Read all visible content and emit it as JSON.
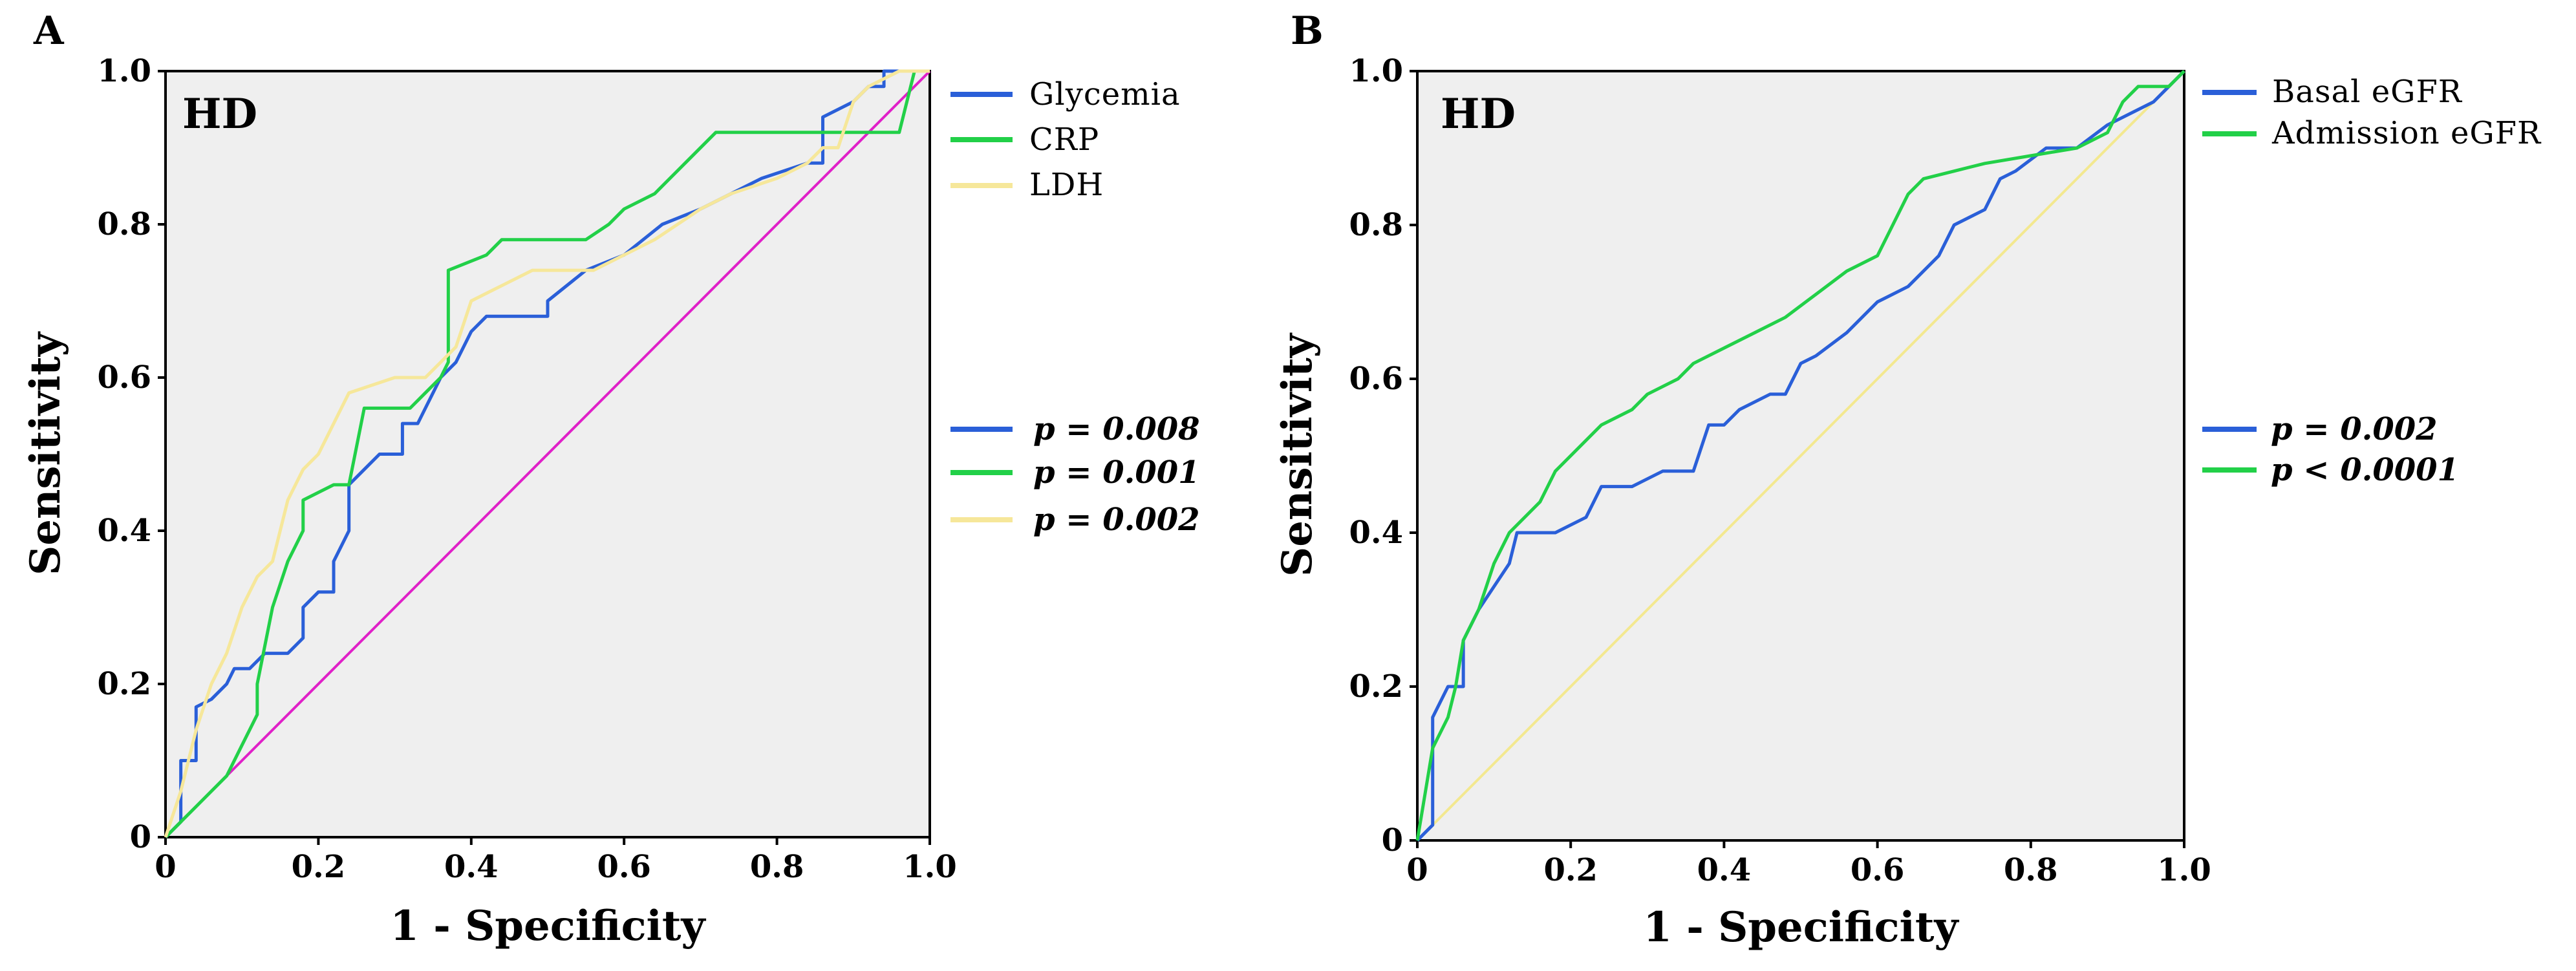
{
  "colors": {
    "plot_bg": "#efefef",
    "frame": "#000000",
    "blue": "#2a5fd8",
    "green": "#22d048",
    "yellow": "#f6e79a",
    "magenta": "#e020c8",
    "ref_yellow": "#f3e890"
  },
  "chart_data": [
    {
      "type": "line",
      "panel_label": "A",
      "inplot_label": "HD",
      "xlabel": "1 - Specificity",
      "ylabel": "Sensitivity",
      "xlim": [
        0,
        1
      ],
      "ylim": [
        0,
        1
      ],
      "x_ticks": [
        0,
        0.2,
        0.4,
        0.6,
        0.8,
        1.0
      ],
      "y_ticks": [
        0,
        0.2,
        0.4,
        0.6,
        0.8,
        1.0
      ],
      "x_tick_labels": [
        "0",
        "0.2",
        "0.4",
        "0.6",
        "0.8",
        "1.0"
      ],
      "y_tick_labels": [
        "0",
        "0.2",
        "0.4",
        "0.6",
        "0.8",
        "1.0"
      ],
      "legend_top": [
        "Glycemia",
        "CRP",
        "LDH"
      ],
      "legend_p": [
        "p = 0.008",
        "p = 0.001",
        "p = 0.002"
      ],
      "reference": {
        "color": "magenta",
        "points": [
          [
            0,
            0
          ],
          [
            1,
            1
          ]
        ]
      },
      "series": [
        {
          "name": "Glycemia",
          "color": "blue",
          "points": [
            [
              0,
              0
            ],
            [
              0.02,
              0.02
            ],
            [
              0.02,
              0.1
            ],
            [
              0.04,
              0.1
            ],
            [
              0.04,
              0.17
            ],
            [
              0.06,
              0.18
            ],
            [
              0.08,
              0.2
            ],
            [
              0.09,
              0.22
            ],
            [
              0.11,
              0.22
            ],
            [
              0.13,
              0.24
            ],
            [
              0.16,
              0.24
            ],
            [
              0.18,
              0.26
            ],
            [
              0.18,
              0.3
            ],
            [
              0.2,
              0.32
            ],
            [
              0.22,
              0.32
            ],
            [
              0.22,
              0.36
            ],
            [
              0.24,
              0.4
            ],
            [
              0.24,
              0.46
            ],
            [
              0.26,
              0.48
            ],
            [
              0.28,
              0.5
            ],
            [
              0.31,
              0.5
            ],
            [
              0.31,
              0.54
            ],
            [
              0.33,
              0.54
            ],
            [
              0.35,
              0.58
            ],
            [
              0.36,
              0.6
            ],
            [
              0.38,
              0.62
            ],
            [
              0.4,
              0.66
            ],
            [
              0.42,
              0.68
            ],
            [
              0.5,
              0.68
            ],
            [
              0.5,
              0.7
            ],
            [
              0.55,
              0.74
            ],
            [
              0.6,
              0.76
            ],
            [
              0.65,
              0.8
            ],
            [
              0.7,
              0.82
            ],
            [
              0.74,
              0.84
            ],
            [
              0.78,
              0.86
            ],
            [
              0.84,
              0.88
            ],
            [
              0.86,
              0.88
            ],
            [
              0.86,
              0.94
            ],
            [
              0.9,
              0.96
            ],
            [
              0.92,
              0.98
            ],
            [
              0.94,
              0.98
            ],
            [
              0.94,
              1
            ],
            [
              1,
              1
            ]
          ]
        },
        {
          "name": "CRP",
          "color": "green",
          "points": [
            [
              0,
              0
            ],
            [
              0.02,
              0.02
            ],
            [
              0.04,
              0.04
            ],
            [
              0.06,
              0.06
            ],
            [
              0.08,
              0.08
            ],
            [
              0.1,
              0.12
            ],
            [
              0.12,
              0.16
            ],
            [
              0.12,
              0.2
            ],
            [
              0.14,
              0.3
            ],
            [
              0.16,
              0.36
            ],
            [
              0.18,
              0.4
            ],
            [
              0.18,
              0.44
            ],
            [
              0.22,
              0.46
            ],
            [
              0.24,
              0.46
            ],
            [
              0.26,
              0.56
            ],
            [
              0.32,
              0.56
            ],
            [
              0.34,
              0.58
            ],
            [
              0.36,
              0.6
            ],
            [
              0.37,
              0.62
            ],
            [
              0.37,
              0.74
            ],
            [
              0.42,
              0.76
            ],
            [
              0.44,
              0.78
            ],
            [
              0.55,
              0.78
            ],
            [
              0.58,
              0.8
            ],
            [
              0.6,
              0.82
            ],
            [
              0.64,
              0.84
            ],
            [
              0.66,
              0.86
            ],
            [
              0.68,
              0.88
            ],
            [
              0.72,
              0.92
            ],
            [
              0.84,
              0.92
            ],
            [
              0.86,
              0.92
            ],
            [
              0.96,
              0.92
            ],
            [
              0.98,
              1
            ],
            [
              1,
              1
            ]
          ]
        },
        {
          "name": "LDH",
          "color": "yellow",
          "points": [
            [
              0,
              0
            ],
            [
              0.02,
              0.06
            ],
            [
              0.04,
              0.14
            ],
            [
              0.06,
              0.2
            ],
            [
              0.08,
              0.24
            ],
            [
              0.1,
              0.3
            ],
            [
              0.12,
              0.34
            ],
            [
              0.14,
              0.36
            ],
            [
              0.16,
              0.44
            ],
            [
              0.18,
              0.48
            ],
            [
              0.2,
              0.5
            ],
            [
              0.22,
              0.54
            ],
            [
              0.24,
              0.58
            ],
            [
              0.3,
              0.6
            ],
            [
              0.34,
              0.6
            ],
            [
              0.38,
              0.64
            ],
            [
              0.4,
              0.7
            ],
            [
              0.44,
              0.72
            ],
            [
              0.48,
              0.74
            ],
            [
              0.56,
              0.74
            ],
            [
              0.6,
              0.76
            ],
            [
              0.64,
              0.78
            ],
            [
              0.7,
              0.82
            ],
            [
              0.74,
              0.84
            ],
            [
              0.8,
              0.86
            ],
            [
              0.84,
              0.88
            ],
            [
              0.86,
              0.9
            ],
            [
              0.88,
              0.9
            ],
            [
              0.9,
              0.96
            ],
            [
              0.92,
              0.98
            ],
            [
              0.96,
              1
            ],
            [
              1,
              1
            ]
          ]
        }
      ]
    },
    {
      "type": "line",
      "panel_label": "B",
      "inplot_label": "HD",
      "xlabel": "1 - Specificity",
      "ylabel": "Sensitivity",
      "xlim": [
        0,
        1
      ],
      "ylim": [
        0,
        1
      ],
      "x_ticks": [
        0,
        0.2,
        0.4,
        0.6,
        0.8,
        1.0
      ],
      "y_ticks": [
        0,
        0.2,
        0.4,
        0.6,
        0.8,
        1.0
      ],
      "x_tick_labels": [
        "0",
        "0.2",
        "0.4",
        "0.6",
        "0.8",
        "1.0"
      ],
      "y_tick_labels": [
        "0",
        "0.2",
        "0.4",
        "0.6",
        "0.8",
        "1.0"
      ],
      "legend_top": [
        "Basal eGFR",
        "Admission eGFR"
      ],
      "legend_p": [
        "p = 0.002",
        "p < 0.0001"
      ],
      "reference": {
        "color": "ref_yellow",
        "points": [
          [
            0,
            0
          ],
          [
            1,
            1
          ]
        ]
      },
      "series": [
        {
          "name": "Basal eGFR",
          "color": "blue",
          "points": [
            [
              0,
              0
            ],
            [
              0.02,
              0.02
            ],
            [
              0.02,
              0.16
            ],
            [
              0.04,
              0.2
            ],
            [
              0.06,
              0.2
            ],
            [
              0.06,
              0.26
            ],
            [
              0.08,
              0.3
            ],
            [
              0.1,
              0.33
            ],
            [
              0.12,
              0.36
            ],
            [
              0.13,
              0.4
            ],
            [
              0.18,
              0.4
            ],
            [
              0.22,
              0.42
            ],
            [
              0.24,
              0.46
            ],
            [
              0.28,
              0.46
            ],
            [
              0.32,
              0.48
            ],
            [
              0.36,
              0.48
            ],
            [
              0.38,
              0.54
            ],
            [
              0.4,
              0.54
            ],
            [
              0.42,
              0.56
            ],
            [
              0.46,
              0.58
            ],
            [
              0.48,
              0.58
            ],
            [
              0.5,
              0.62
            ],
            [
              0.52,
              0.63
            ],
            [
              0.56,
              0.66
            ],
            [
              0.6,
              0.7
            ],
            [
              0.64,
              0.72
            ],
            [
              0.68,
              0.76
            ],
            [
              0.7,
              0.8
            ],
            [
              0.74,
              0.82
            ],
            [
              0.76,
              0.86
            ],
            [
              0.78,
              0.87
            ],
            [
              0.82,
              0.9
            ],
            [
              0.86,
              0.9
            ],
            [
              0.9,
              0.93
            ],
            [
              0.94,
              0.95
            ],
            [
              0.96,
              0.96
            ],
            [
              0.98,
              0.98
            ],
            [
              1,
              1
            ]
          ]
        },
        {
          "name": "Admission eGFR",
          "color": "green",
          "points": [
            [
              0,
              0
            ],
            [
              0.01,
              0.06
            ],
            [
              0.02,
              0.12
            ],
            [
              0.04,
              0.16
            ],
            [
              0.05,
              0.2
            ],
            [
              0.06,
              0.26
            ],
            [
              0.08,
              0.3
            ],
            [
              0.1,
              0.36
            ],
            [
              0.12,
              0.4
            ],
            [
              0.16,
              0.44
            ],
            [
              0.18,
              0.48
            ],
            [
              0.2,
              0.5
            ],
            [
              0.24,
              0.54
            ],
            [
              0.28,
              0.56
            ],
            [
              0.3,
              0.58
            ],
            [
              0.34,
              0.6
            ],
            [
              0.36,
              0.62
            ],
            [
              0.4,
              0.64
            ],
            [
              0.44,
              0.66
            ],
            [
              0.48,
              0.68
            ],
            [
              0.52,
              0.71
            ],
            [
              0.56,
              0.74
            ],
            [
              0.6,
              0.76
            ],
            [
              0.62,
              0.8
            ],
            [
              0.64,
              0.84
            ],
            [
              0.66,
              0.86
            ],
            [
              0.7,
              0.87
            ],
            [
              0.74,
              0.88
            ],
            [
              0.8,
              0.89
            ],
            [
              0.86,
              0.9
            ],
            [
              0.9,
              0.92
            ],
            [
              0.92,
              0.96
            ],
            [
              0.94,
              0.98
            ],
            [
              0.98,
              0.98
            ],
            [
              1,
              1
            ]
          ]
        }
      ]
    }
  ]
}
